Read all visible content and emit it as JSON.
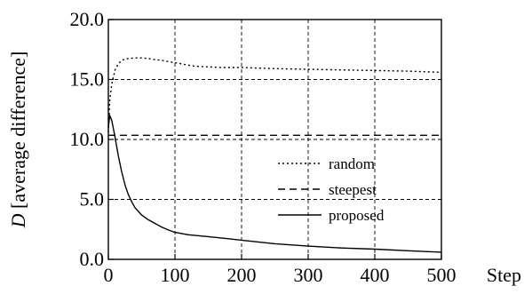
{
  "chart_data": {
    "type": "line",
    "xlabel": "Step",
    "ylabel_symbol": "D",
    "ylabel_text": "[average difference]",
    "xlim": [
      0,
      500
    ],
    "ylim": [
      0,
      20
    ],
    "x_ticks": [
      0,
      100,
      200,
      300,
      400,
      500
    ],
    "x_tick_labels": [
      "0",
      "100",
      "200",
      "300",
      "400",
      "500"
    ],
    "y_ticks": [
      0,
      5,
      10,
      15,
      20
    ],
    "y_tick_labels": [
      "0.0",
      "5.0",
      "10.0",
      "15.0",
      "20.0"
    ],
    "grid": true,
    "legend_position": "lower-right",
    "series": [
      {
        "name": "random",
        "style": "dotted",
        "x": [
          0,
          2,
          5,
          10,
          15,
          20,
          25,
          30,
          40,
          50,
          60,
          70,
          80,
          90,
          100,
          110,
          120,
          130,
          150,
          170,
          200,
          250,
          300,
          350,
          400,
          450,
          500
        ],
        "y": [
          10.6,
          13.2,
          14.6,
          15.8,
          16.3,
          16.6,
          16.7,
          16.75,
          16.8,
          16.8,
          16.75,
          16.65,
          16.6,
          16.5,
          16.4,
          16.3,
          16.2,
          16.1,
          16.05,
          16.0,
          16.0,
          15.9,
          15.85,
          15.8,
          15.75,
          15.7,
          15.6
        ]
      },
      {
        "name": "steepest",
        "style": "dashed",
        "x": [
          0,
          500
        ],
        "y": [
          10.35,
          10.35
        ]
      },
      {
        "name": "proposed",
        "style": "solid",
        "x": [
          0,
          2,
          5,
          10,
          15,
          20,
          25,
          30,
          35,
          40,
          50,
          60,
          70,
          80,
          90,
          100,
          120,
          150,
          200,
          250,
          300,
          350,
          400,
          450,
          500
        ],
        "y": [
          11.0,
          12.0,
          11.6,
          10.2,
          8.6,
          7.3,
          6.2,
          5.4,
          4.8,
          4.3,
          3.7,
          3.3,
          3.0,
          2.7,
          2.45,
          2.25,
          2.05,
          1.9,
          1.6,
          1.3,
          1.1,
          0.95,
          0.85,
          0.72,
          0.6
        ]
      }
    ]
  }
}
